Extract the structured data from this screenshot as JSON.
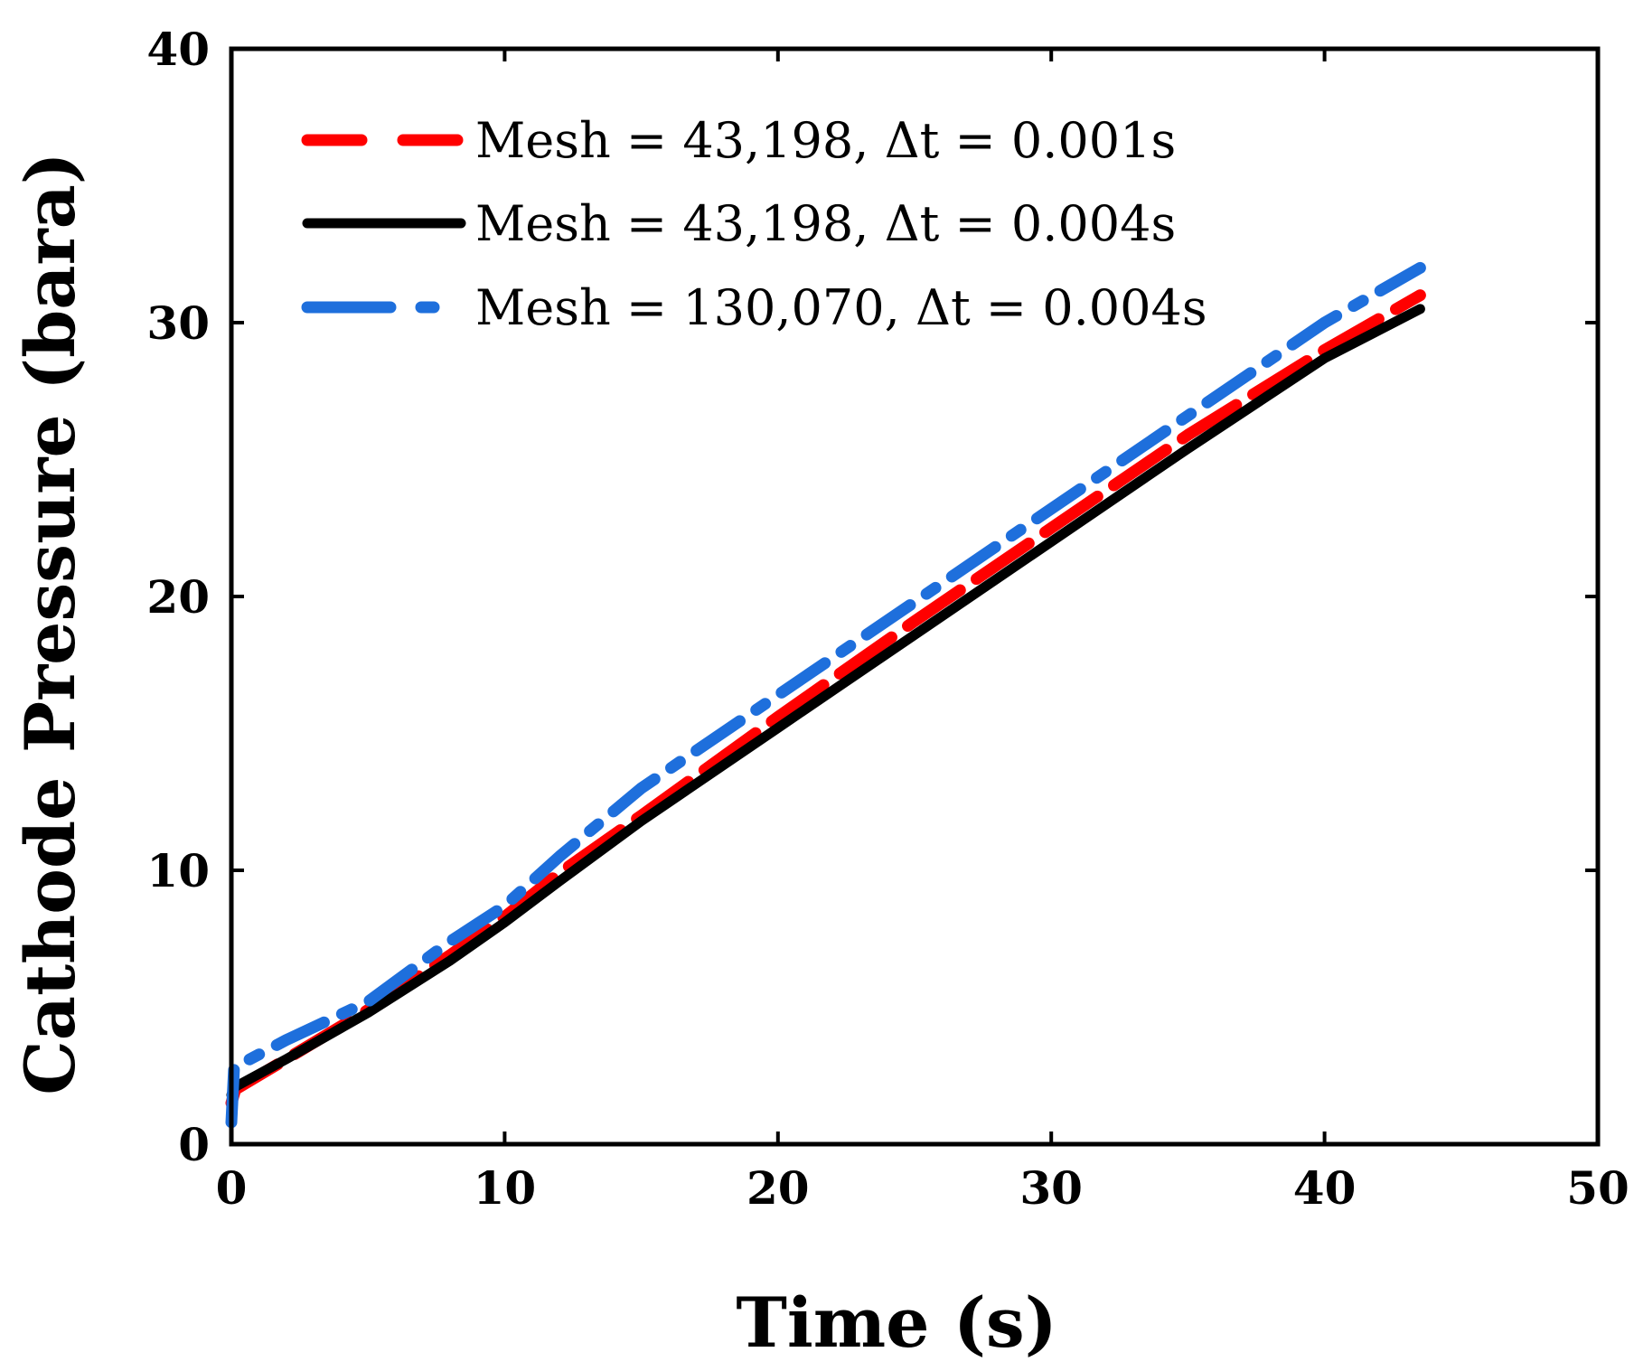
{
  "chart_data": {
    "type": "line",
    "title": "",
    "xlabel": "Time (s)",
    "ylabel": "Cathode Pressure (bara)",
    "xlim": [
      0,
      50
    ],
    "ylim": [
      0,
      40
    ],
    "xticks": [
      0,
      10,
      20,
      30,
      40,
      50
    ],
    "yticks": [
      0,
      10,
      20,
      30,
      40
    ],
    "xtick_labels": [
      "0",
      "10",
      "20",
      "30",
      "40",
      "50"
    ],
    "ytick_labels": [
      "0",
      "10",
      "20",
      "30",
      "40"
    ],
    "grid": false,
    "legend_position": "top-left",
    "series": [
      {
        "name": "Mesh = 43,198, Δt = 0.001s",
        "color": "#ff0000",
        "style": "dashed",
        "x": [
          0,
          0.15,
          2,
          5,
          8,
          10,
          12,
          15,
          20,
          25,
          30,
          35,
          40,
          43.5
        ],
        "y": [
          1.5,
          2.0,
          3.1,
          4.9,
          6.9,
          8.3,
          9.9,
          12.0,
          15.6,
          19.1,
          22.5,
          25.9,
          29.0,
          31.0
        ]
      },
      {
        "name": "Mesh = 43,198, Δt = 0.004s",
        "color": "#000000",
        "style": "solid",
        "x": [
          0,
          0.15,
          2,
          5,
          8,
          10,
          12,
          15,
          20,
          25,
          30,
          35,
          40,
          43.5
        ],
        "y": [
          1.8,
          2.1,
          3.1,
          4.8,
          6.7,
          8.1,
          9.6,
          11.8,
          15.2,
          18.6,
          22.0,
          25.4,
          28.7,
          30.5
        ]
      },
      {
        "name": "Mesh = 130,070, Δt = 0.004s",
        "color": "#1e6fdc",
        "style": "dash-dot",
        "x": [
          0,
          0.1,
          2,
          5,
          8,
          10,
          12,
          15,
          20,
          25,
          30,
          35,
          40,
          43.5
        ],
        "y": [
          0.8,
          2.8,
          3.8,
          5.2,
          7.4,
          8.7,
          10.5,
          13.0,
          16.4,
          19.8,
          23.2,
          26.6,
          30.0,
          32.0
        ]
      }
    ]
  }
}
